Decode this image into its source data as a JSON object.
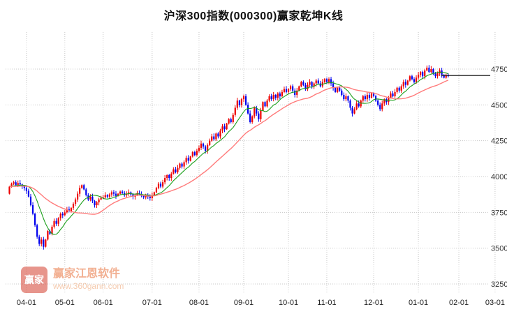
{
  "page": {
    "title": "沪深300指数(000300)赢家乾坤K线"
  },
  "watermark": {
    "brand": "赢家江恩软件",
    "url": "www.360gann.com",
    "logo_text": "赢家",
    "brand_color": "#e8703a"
  },
  "chart_data": {
    "type": "candlestick",
    "title": "沪深300指数(000300)赢家乾坤K线",
    "ylabel": "",
    "xlabel": "",
    "y_ticks": [
      3250,
      3500,
      3750,
      4000,
      4250,
      4500,
      4750
    ],
    "ylim": [
      3170,
      5020
    ],
    "y_axis_side": "right",
    "grid": true,
    "legend": "none",
    "x_ticks": [
      {
        "label": "04-01",
        "index": 8
      },
      {
        "label": "05-01",
        "index": 26
      },
      {
        "label": "06-01",
        "index": 44
      },
      {
        "label": "07-01",
        "index": 67
      },
      {
        "label": "08-01",
        "index": 89
      },
      {
        "label": "09-01",
        "index": 110
      },
      {
        "label": "10-01",
        "index": 131
      },
      {
        "label": "11-01",
        "index": 149
      },
      {
        "label": "12-01",
        "index": 171
      },
      {
        "label": "01-01",
        "index": 192
      },
      {
        "label": "02-01",
        "index": 211
      },
      {
        "label": "03-01",
        "index": 228
      }
    ],
    "first_open": 3880,
    "closes": [
      3930,
      3950,
      3960,
      3940,
      3955,
      3945,
      3930,
      3920,
      3900,
      3860,
      3800,
      3740,
      3660,
      3580,
      3530,
      3560,
      3510,
      3560,
      3620,
      3600,
      3650,
      3690,
      3670,
      3710,
      3740,
      3730,
      3750,
      3770,
      3760,
      3780,
      3810,
      3840,
      3880,
      3920,
      3940,
      3910,
      3870,
      3840,
      3860,
      3830,
      3800,
      3820,
      3840,
      3850,
      3855,
      3870,
      3860,
      3875,
      3890,
      3880,
      3865,
      3880,
      3895,
      3885,
      3870,
      3880,
      3890,
      3875,
      3860,
      3870,
      3885,
      3875,
      3865,
      3855,
      3870,
      3860,
      3850,
      3870,
      3890,
      3920,
      3950,
      3930,
      3960,
      3990,
      4010,
      3990,
      4020,
      4050,
      4030,
      4060,
      4090,
      4070,
      4100,
      4130,
      4110,
      4140,
      4170,
      4150,
      4180,
      4200,
      4230,
      4210,
      4180,
      4220,
      4250,
      4280,
      4260,
      4300,
      4280,
      4320,
      4350,
      4330,
      4370,
      4400,
      4380,
      4430,
      4480,
      4530,
      4500,
      4540,
      4560,
      4500,
      4440,
      4380,
      4420,
      4480,
      4440,
      4400,
      4460,
      4520,
      4490,
      4530,
      4560,
      4540,
      4570,
      4550,
      4580,
      4560,
      4590,
      4610,
      4590,
      4610,
      4630,
      4600,
      4570,
      4600,
      4630,
      4660,
      4640,
      4610,
      4640,
      4660,
      4630,
      4650,
      4670,
      4650,
      4630,
      4660,
      4680,
      4660,
      4680,
      4650,
      4620,
      4590,
      4620,
      4600,
      4570,
      4540,
      4560,
      4530,
      4480,
      4440,
      4470,
      4510,
      4490,
      4530,
      4560,
      4540,
      4570,
      4550,
      4580,
      4560,
      4530,
      4500,
      4470,
      4510,
      4540,
      4520,
      4550,
      4580,
      4560,
      4590,
      4620,
      4600,
      4630,
      4660,
      4640,
      4670,
      4700,
      4680,
      4660,
      4690,
      4710,
      4730,
      4700,
      4740,
      4760,
      4730,
      4750,
      4720,
      4700,
      4720,
      4740,
      4710,
      4690,
      4710,
      4700
    ],
    "series": [
      {
        "name": "MA10",
        "type": "sma",
        "window": 10,
        "color": "#1ca01c"
      },
      {
        "name": "MA30",
        "type": "sma",
        "window": 30,
        "color": "#ff7b7b"
      }
    ],
    "reference_line": {
      "value": 4705,
      "color": "#222222"
    },
    "colors": {
      "up": "#ee0000",
      "down": "#0000ee",
      "grid": "#c8c8c8"
    }
  }
}
